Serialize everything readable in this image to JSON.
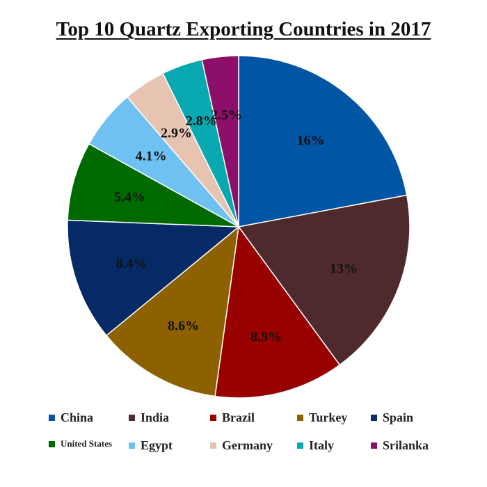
{
  "chart_data": {
    "type": "pie",
    "title": "Top 10 Quartz Exporting Countries in 2017",
    "slices": [
      {
        "name": "China",
        "value": 16,
        "label": "16%",
        "color": "#0055a5"
      },
      {
        "name": "India",
        "value": 13,
        "label": "13%",
        "color": "#4e2a2d"
      },
      {
        "name": "Brazil",
        "value": 8.9,
        "label": "8.9%",
        "color": "#990000"
      },
      {
        "name": "Turkey",
        "value": 8.6,
        "label": "8.6%",
        "color": "#8d6100"
      },
      {
        "name": "Spain",
        "value": 8.4,
        "label": "8.4%",
        "color": "#062a66"
      },
      {
        "name": "United States",
        "value": 5.4,
        "label": "5.4%",
        "color": "#006a00"
      },
      {
        "name": "Egypt",
        "value": 4.1,
        "label": "4.1%",
        "color": "#6ec1f0"
      },
      {
        "name": "Germany",
        "value": 2.9,
        "label": "2.9%",
        "color": "#e7c4b1"
      },
      {
        "name": "Italy",
        "value": 2.8,
        "label": "2.8%",
        "color": "#08a8b0"
      },
      {
        "name": "Srilanka",
        "value": 2.5,
        "label": "2.5%",
        "color": "#8c0f6a"
      }
    ],
    "legend_position": "bottom"
  }
}
